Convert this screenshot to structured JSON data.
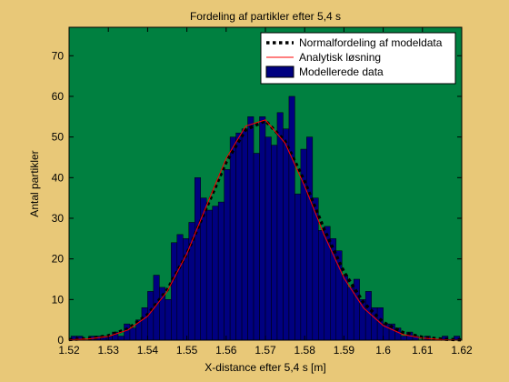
{
  "chart_data": {
    "type": "histogram",
    "title": "Fordeling af partikler efter 5,4 s",
    "xlabel": "X-distance efter 5,4 s [m]",
    "ylabel": "Antal partikler",
    "background": "#e8c878",
    "plot_background": "#008040",
    "xlim": [
      1.52,
      1.62
    ],
    "xticks": [
      1.52,
      1.53,
      1.54,
      1.55,
      1.56,
      1.57,
      1.58,
      1.59,
      1.6,
      1.61,
      1.62
    ],
    "ylim": [
      0,
      77
    ],
    "yticks": [
      0,
      10,
      20,
      30,
      40,
      50,
      60,
      70
    ],
    "legend": "upper right",
    "bins": [
      1.5205,
      1.522,
      1.5235,
      1.525,
      1.5265,
      1.528,
      1.5295,
      1.531,
      1.5325,
      1.534,
      1.5355,
      1.537,
      1.5385,
      1.54,
      1.5415,
      1.543,
      1.5445,
      1.546,
      1.5475,
      1.549,
      1.5505,
      1.552,
      1.5535,
      1.555,
      1.5565,
      1.558,
      1.5595,
      1.561,
      1.5625,
      1.564,
      1.5655,
      1.567,
      1.5685,
      1.57,
      1.5715,
      1.573,
      1.5745,
      1.576,
      1.5775,
      1.579,
      1.5805,
      1.582,
      1.5835,
      1.585,
      1.5865,
      1.588,
      1.5895,
      1.591,
      1.5925,
      1.594,
      1.5955,
      1.597,
      1.5985,
      1.6,
      1.6015,
      1.603,
      1.6045,
      1.606,
      1.6075,
      1.609,
      1.6105,
      1.612,
      1.6135,
      1.615,
      1.6165,
      1.618,
      1.6195
    ],
    "counts": {
      "name": "Modellerede data",
      "color": "#000080",
      "values": [
        1,
        1,
        0,
        1,
        1,
        1,
        1,
        2,
        1,
        4,
        3,
        5,
        8,
        12,
        16,
        13,
        10,
        24,
        26,
        25,
        29,
        40,
        35,
        32,
        33,
        34,
        42,
        50,
        51,
        52,
        55,
        46,
        55,
        50,
        48,
        56,
        52,
        60,
        36,
        47,
        50,
        35,
        27,
        28,
        25,
        22,
        16,
        13,
        15,
        10,
        12,
        8,
        8,
        4,
        4,
        3,
        1,
        2,
        1,
        0,
        1,
        0,
        0,
        1,
        0,
        1
      ]
    },
    "lines": [
      {
        "name": "Normalfordeling af modeldata",
        "color": "#000000",
        "style": "dotted",
        "x": [
          1.52,
          1.525,
          1.53,
          1.535,
          1.54,
          1.545,
          1.55,
          1.555,
          1.56,
          1.565,
          1.57,
          1.575,
          1.58,
          1.585,
          1.59,
          1.595,
          1.6,
          1.605,
          1.61,
          1.615,
          1.62
        ],
        "y": [
          0.15,
          0.4,
          1.1,
          2.8,
          6.3,
          12.4,
          21.3,
          32.6,
          43.8,
          51.8,
          54,
          49,
          39,
          27.2,
          16.8,
          9.2,
          4.4,
          1.9,
          0.7,
          0.25,
          0.08
        ]
      },
      {
        "name": "Analytisk løsning",
        "color": "#ff0000",
        "style": "solid",
        "x": [
          1.52,
          1.525,
          1.53,
          1.535,
          1.54,
          1.545,
          1.55,
          1.555,
          1.56,
          1.565,
          1.57,
          1.575,
          1.58,
          1.585,
          1.59,
          1.595,
          1.6,
          1.605,
          1.61,
          1.615,
          1.62
        ],
        "y": [
          0.09,
          0.3,
          0.93,
          2.5,
          5.9,
          12,
          21.3,
          33.1,
          44.7,
          52.7,
          54.2,
          48.5,
          37.9,
          25.8,
          15.3,
          7.9,
          3.6,
          1.4,
          0.49,
          0.15,
          0.04
        ]
      }
    ]
  }
}
